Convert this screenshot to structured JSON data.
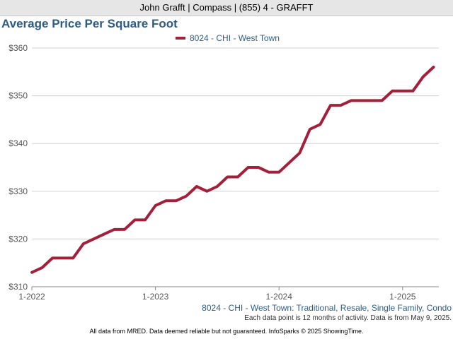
{
  "banner": "John Grafft | Compass | (855) 4 - GRAFFT",
  "chart_data": {
    "type": "line",
    "title": "Average Price Per Square Foot",
    "series": [
      {
        "name": "8024 - CHI - West Town",
        "color": "#a3203b",
        "x": [
          "1-2022",
          "2-2022",
          "3-2022",
          "4-2022",
          "5-2022",
          "6-2022",
          "7-2022",
          "8-2022",
          "9-2022",
          "10-2022",
          "11-2022",
          "12-2022",
          "1-2023",
          "2-2023",
          "3-2023",
          "4-2023",
          "5-2023",
          "6-2023",
          "7-2023",
          "8-2023",
          "9-2023",
          "10-2023",
          "11-2023",
          "12-2023",
          "1-2024",
          "2-2024",
          "3-2024",
          "4-2024",
          "5-2024",
          "6-2024",
          "7-2024",
          "8-2024",
          "9-2024",
          "10-2024",
          "11-2024",
          "12-2024",
          "1-2025",
          "2-2025",
          "3-2025",
          "4-2025"
        ],
        "values": [
          313,
          314,
          316,
          316,
          316,
          319,
          320,
          321,
          322,
          322,
          324,
          324,
          327,
          328,
          328,
          329,
          331,
          330,
          331,
          333,
          333,
          335,
          335,
          334,
          334,
          336,
          338,
          343,
          344,
          348,
          348,
          349,
          349,
          349,
          349,
          351,
          351,
          351,
          354,
          356
        ]
      }
    ],
    "x_tick_labels": [
      "1-2022",
      "1-2023",
      "1-2024",
      "1-2025"
    ],
    "y_tick_labels": [
      "$310",
      "$320",
      "$330",
      "$340",
      "$350",
      "$360"
    ],
    "ylim": [
      310,
      360
    ],
    "grid": true,
    "legend_position": "top-center"
  },
  "footer": {
    "description": "8024 - CHI - West Town: Traditional, Resale, Single Family, Condo",
    "note": "Each data point is 12 months of activity. Data is from May 9, 2025.",
    "disclaimer": "All data from MRED. Data deemed reliable but not guaranteed. InfoSparks © 2025 ShowingTime."
  }
}
